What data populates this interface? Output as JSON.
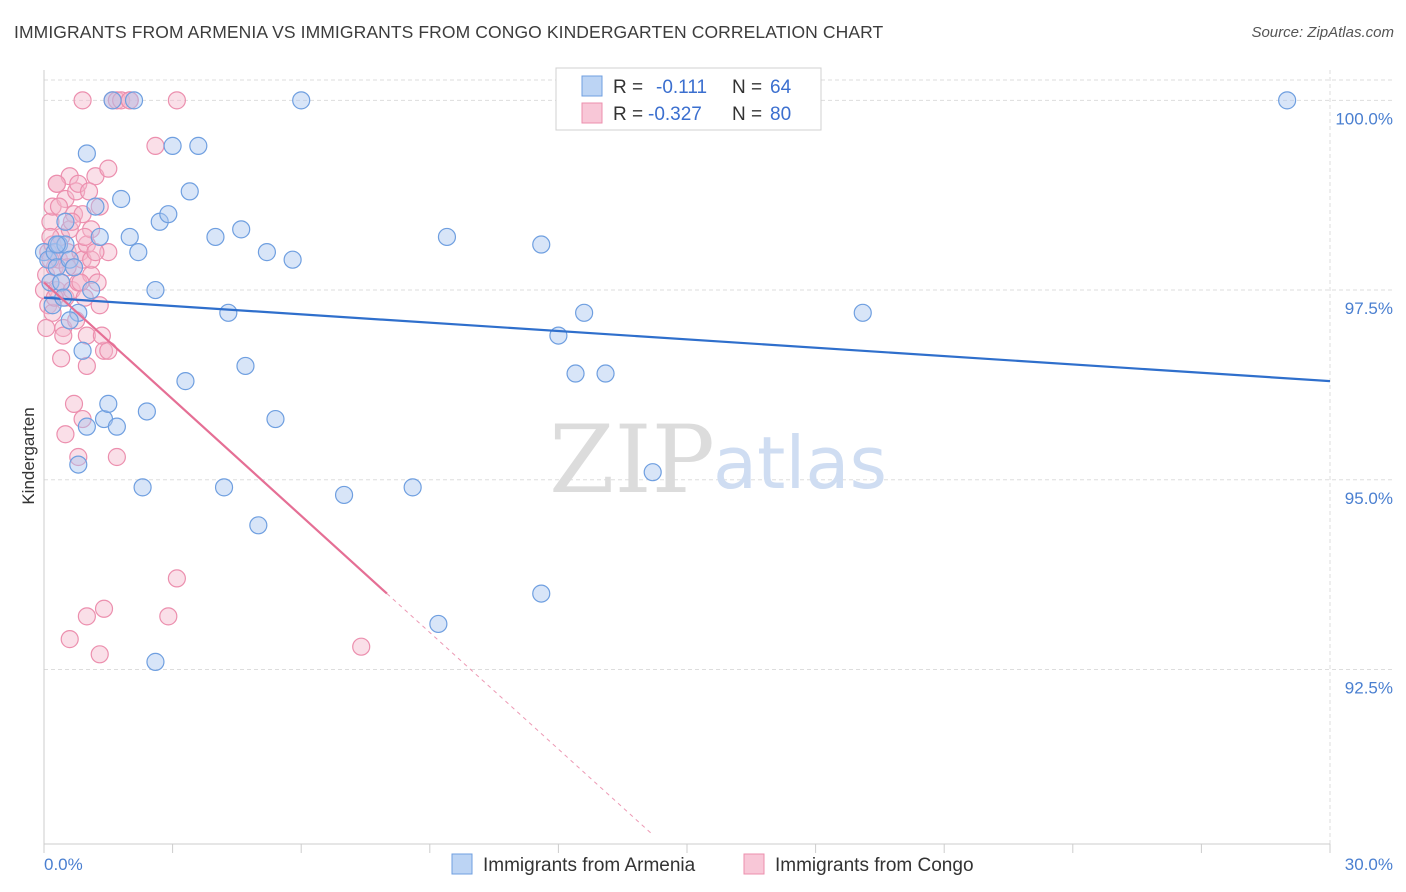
{
  "title": "IMMIGRANTS FROM ARMENIA VS IMMIGRANTS FROM CONGO KINDERGARTEN CORRELATION CHART",
  "source": "Source: ZipAtlas.com",
  "watermark": {
    "zip": "ZIP",
    "atlas": "atlas"
  },
  "colors": {
    "blue_fill": "#a8c6f0",
    "blue_stroke": "#6f9fe0",
    "blue_line": "#2f6fcc",
    "pink_fill": "#f5b8cc",
    "pink_stroke": "#ec8fae",
    "pink_line": "#e56f95",
    "grid": "#dddddd",
    "axis_label": "#4a7fd0"
  },
  "legend": {
    "rows": [
      {
        "r_label": "R =",
        "r_value": "-0.111",
        "n_label": "N =",
        "n_value": "64"
      },
      {
        "r_label": "R =",
        "r_value": "-0.327",
        "n_label": "N =",
        "n_value": "80"
      }
    ]
  },
  "chart_data": {
    "type": "scatter",
    "title": "IMMIGRANTS FROM ARMENIA VS IMMIGRANTS FROM CONGO KINDERGARTEN CORRELATION CHART",
    "xlabel": "",
    "ylabel": "Kindergarten",
    "xlim": [
      0,
      30
    ],
    "ylim": [
      90.2,
      100.4
    ],
    "x_tick_labels": [
      "0.0%",
      "30.0%"
    ],
    "y_ticks": [
      92.5,
      95.0,
      97.5,
      100.0
    ],
    "y_tick_labels": [
      "92.5%",
      "95.0%",
      "97.5%",
      "100.0%"
    ],
    "grid": true,
    "legend_position": "bottom",
    "series": [
      {
        "name": "Immigrants from Armenia",
        "r": -0.111,
        "n": 64,
        "trend": {
          "x": [
            0.0,
            30.0
          ],
          "y": [
            97.4,
            96.3
          ],
          "dashed_extension": false
        },
        "points": [
          [
            0.0,
            98.0
          ],
          [
            0.1,
            97.9
          ],
          [
            0.15,
            97.6
          ],
          [
            0.2,
            97.3
          ],
          [
            0.25,
            98.0
          ],
          [
            0.3,
            97.8
          ],
          [
            0.35,
            98.1
          ],
          [
            0.4,
            97.6
          ],
          [
            0.45,
            97.4
          ],
          [
            0.5,
            98.4
          ],
          [
            0.5,
            98.1
          ],
          [
            0.6,
            97.9
          ],
          [
            0.7,
            97.8
          ],
          [
            0.8,
            97.2
          ],
          [
            0.9,
            96.7
          ],
          [
            1.0,
            95.7
          ],
          [
            1.0,
            99.3
          ],
          [
            1.1,
            97.5
          ],
          [
            1.2,
            98.6
          ],
          [
            1.3,
            98.2
          ],
          [
            1.4,
            95.8
          ],
          [
            1.5,
            96.0
          ],
          [
            1.6,
            100.0
          ],
          [
            1.7,
            95.7
          ],
          [
            1.8,
            98.7
          ],
          [
            2.0,
            98.2
          ],
          [
            2.1,
            100.0
          ],
          [
            2.2,
            98.0
          ],
          [
            2.3,
            94.9
          ],
          [
            2.4,
            95.9
          ],
          [
            2.6,
            97.5
          ],
          [
            2.7,
            98.4
          ],
          [
            2.9,
            98.5
          ],
          [
            3.0,
            99.4
          ],
          [
            3.3,
            96.3
          ],
          [
            3.4,
            98.8
          ],
          [
            3.6,
            99.4
          ],
          [
            4.0,
            98.2
          ],
          [
            4.2,
            94.9
          ],
          [
            4.3,
            97.2
          ],
          [
            4.6,
            98.3
          ],
          [
            4.7,
            96.5
          ],
          [
            5.0,
            94.4
          ],
          [
            5.2,
            98.0
          ],
          [
            5.4,
            95.8
          ],
          [
            5.8,
            97.9
          ],
          [
            6.0,
            100.0
          ],
          [
            7.0,
            94.8
          ],
          [
            8.6,
            94.9
          ],
          [
            9.2,
            93.1
          ],
          [
            9.4,
            98.2
          ],
          [
            11.6,
            93.5
          ],
          [
            11.6,
            98.1
          ],
          [
            12.0,
            96.9
          ],
          [
            12.4,
            96.4
          ],
          [
            12.6,
            97.2
          ],
          [
            13.1,
            96.4
          ],
          [
            14.2,
            95.1
          ],
          [
            19.1,
            97.2
          ],
          [
            29.0,
            100.0
          ],
          [
            2.6,
            92.6
          ],
          [
            0.8,
            95.2
          ],
          [
            0.6,
            97.1
          ],
          [
            0.3,
            98.1
          ]
        ]
      },
      {
        "name": "Immigrants from Congo",
        "r": -0.327,
        "n": 80,
        "trend": {
          "x": [
            0.0,
            8.0
          ],
          "y": [
            97.6,
            93.5
          ],
          "dashed_extension_to_x": 14.2
        },
        "points": [
          [
            0.0,
            97.5
          ],
          [
            0.05,
            97.7
          ],
          [
            0.1,
            98.0
          ],
          [
            0.1,
            97.3
          ],
          [
            0.15,
            98.4
          ],
          [
            0.2,
            98.1
          ],
          [
            0.2,
            98.6
          ],
          [
            0.25,
            97.8
          ],
          [
            0.3,
            97.5
          ],
          [
            0.3,
            98.9
          ],
          [
            0.35,
            97.9
          ],
          [
            0.4,
            97.6
          ],
          [
            0.4,
            98.2
          ],
          [
            0.45,
            97.0
          ],
          [
            0.5,
            98.7
          ],
          [
            0.5,
            97.4
          ],
          [
            0.55,
            98.0
          ],
          [
            0.6,
            98.3
          ],
          [
            0.6,
            99.0
          ],
          [
            0.65,
            97.5
          ],
          [
            0.7,
            98.5
          ],
          [
            0.7,
            97.8
          ],
          [
            0.75,
            98.8
          ],
          [
            0.8,
            97.6
          ],
          [
            0.8,
            98.9
          ],
          [
            0.85,
            98.0
          ],
          [
            0.9,
            97.9
          ],
          [
            0.9,
            98.5
          ],
          [
            0.95,
            97.4
          ],
          [
            1.0,
            98.1
          ],
          [
            1.0,
            96.9
          ],
          [
            1.1,
            98.3
          ],
          [
            1.1,
            97.7
          ],
          [
            1.2,
            99.0
          ],
          [
            1.3,
            98.6
          ],
          [
            1.3,
            97.3
          ],
          [
            1.4,
            96.7
          ],
          [
            1.5,
            99.1
          ],
          [
            1.5,
            98.0
          ],
          [
            1.6,
            100.0
          ],
          [
            1.7,
            100.0
          ],
          [
            1.8,
            100.0
          ],
          [
            2.0,
            100.0
          ],
          [
            2.0,
            100.0
          ],
          [
            2.6,
            99.4
          ],
          [
            3.1,
            100.0
          ],
          [
            0.4,
            96.6
          ],
          [
            0.5,
            95.6
          ],
          [
            0.7,
            96.0
          ],
          [
            0.8,
            95.3
          ],
          [
            0.9,
            95.8
          ],
          [
            1.0,
            96.5
          ],
          [
            1.1,
            97.9
          ],
          [
            1.5,
            96.7
          ],
          [
            1.7,
            95.3
          ],
          [
            0.6,
            92.9
          ],
          [
            1.0,
            93.2
          ],
          [
            1.3,
            92.7
          ],
          [
            1.4,
            93.3
          ],
          [
            2.9,
            93.2
          ],
          [
            3.1,
            93.7
          ],
          [
            7.4,
            92.8
          ],
          [
            0.3,
            98.9
          ],
          [
            0.9,
            100.0
          ],
          [
            0.2,
            97.2
          ],
          [
            0.45,
            96.9
          ],
          [
            0.55,
            97.8
          ],
          [
            0.65,
            98.4
          ],
          [
            0.75,
            97.1
          ],
          [
            1.2,
            98.0
          ],
          [
            0.35,
            98.6
          ],
          [
            0.25,
            97.4
          ],
          [
            0.15,
            97.9
          ],
          [
            0.85,
            97.6
          ],
          [
            1.05,
            98.8
          ],
          [
            1.25,
            97.6
          ],
          [
            0.95,
            98.2
          ],
          [
            1.35,
            96.9
          ],
          [
            0.15,
            98.2
          ],
          [
            0.05,
            97.0
          ]
        ]
      }
    ]
  }
}
